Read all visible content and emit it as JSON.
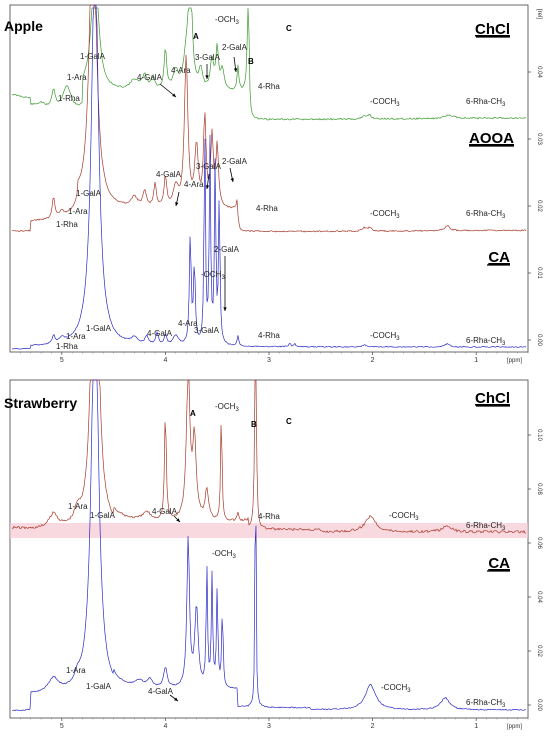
{
  "chart_data": [
    {
      "type": "line",
      "title": "Apple",
      "x_unit": "[ppm]",
      "x_ticks": [
        "5",
        "4",
        "3",
        "2",
        "1"
      ],
      "y_ticks": [
        "0.00",
        "0.01",
        "0.02",
        "0.03",
        "0.04"
      ],
      "y_unit": "[rel]",
      "series": [
        {
          "name": "ChCl",
          "color": "#3a9a2e"
        },
        {
          "name": "AOOA",
          "color": "#a83a2a"
        },
        {
          "name": "CA",
          "color": "#2a2ac8"
        }
      ],
      "annotations": [
        {
          "series": "ChCl",
          "text": "1-Rha"
        },
        {
          "series": "ChCl",
          "text": "1-Ara"
        },
        {
          "series": "ChCl",
          "text": "1-GalA"
        },
        {
          "series": "ChCl",
          "text": "4-GalA"
        },
        {
          "series": "ChCl",
          "text": "4-Ara"
        },
        {
          "series": "ChCl",
          "text": "A"
        },
        {
          "series": "ChCl",
          "text": "-OCH3"
        },
        {
          "series": "ChCl",
          "text": "3-GalA"
        },
        {
          "series": "ChCl",
          "text": "2-GalA"
        },
        {
          "series": "ChCl",
          "text": "B"
        },
        {
          "series": "ChCl",
          "text": "C"
        },
        {
          "series": "ChCl",
          "text": "4-Rha"
        },
        {
          "series": "ChCl",
          "text": "-COCH3"
        },
        {
          "series": "ChCl",
          "text": "6-Rha-CH3"
        },
        {
          "series": "AOOA",
          "text": "1-GalA"
        },
        {
          "series": "AOOA",
          "text": "1-Ara"
        },
        {
          "series": "AOOA",
          "text": "1-Rha"
        },
        {
          "series": "AOOA",
          "text": "4-GalA"
        },
        {
          "series": "AOOA",
          "text": "4-Ara"
        },
        {
          "series": "AOOA",
          "text": "3-GalA"
        },
        {
          "series": "AOOA",
          "text": "2-GalA"
        },
        {
          "series": "AOOA",
          "text": "4-Rha"
        },
        {
          "series": "AOOA",
          "text": "-COCH3"
        },
        {
          "series": "AOOA",
          "text": "6-Rha-CH3"
        },
        {
          "series": "CA",
          "text": "2-GalA"
        },
        {
          "series": "CA",
          "text": "-OCH3"
        },
        {
          "series": "CA",
          "text": "4-Ara"
        },
        {
          "series": "CA",
          "text": "3-GalA"
        },
        {
          "series": "CA",
          "text": "4-GalA"
        },
        {
          "series": "CA",
          "text": "1-GalA"
        },
        {
          "series": "CA",
          "text": "1-Ara"
        },
        {
          "series": "CA",
          "text": "1-Rha"
        },
        {
          "series": "CA",
          "text": "4-Rha"
        },
        {
          "series": "CA",
          "text": "-COCH3"
        },
        {
          "series": "CA",
          "text": "6-Rha-CH3"
        }
      ]
    },
    {
      "type": "line",
      "title": "Strawberry",
      "x_unit": "[ppm]",
      "x_ticks": [
        "5",
        "4",
        "3",
        "2",
        "1"
      ],
      "y_ticks": [
        "0.00",
        "0.02",
        "0.04",
        "0.06",
        "0.08",
        "0.10"
      ],
      "series": [
        {
          "name": "ChCl",
          "color": "#a83a2a"
        },
        {
          "name": "CA",
          "color": "#2a2ac8"
        }
      ],
      "annotations": [
        {
          "series": "ChCl",
          "text": "A"
        },
        {
          "series": "ChCl",
          "text": "-OCH3"
        },
        {
          "series": "ChCl",
          "text": "B"
        },
        {
          "series": "ChCl",
          "text": "C"
        },
        {
          "series": "ChCl",
          "text": "1-Ara"
        },
        {
          "series": "ChCl",
          "text": "1-GalA"
        },
        {
          "series": "ChCl",
          "text": "4-GalA"
        },
        {
          "series": "ChCl",
          "text": "4-Rha"
        },
        {
          "series": "ChCl",
          "text": "-COCH3"
        },
        {
          "series": "ChCl",
          "text": "6-Rha-CH3"
        },
        {
          "series": "CA",
          "text": "-OCH3"
        },
        {
          "series": "CA",
          "text": "1-Ara"
        },
        {
          "series": "CA",
          "text": "1-GalA"
        },
        {
          "series": "CA",
          "text": "4-GalA"
        },
        {
          "series": "CA",
          "text": "-COCH3"
        },
        {
          "series": "CA",
          "text": "6-Rha-CH3"
        }
      ]
    }
  ]
}
